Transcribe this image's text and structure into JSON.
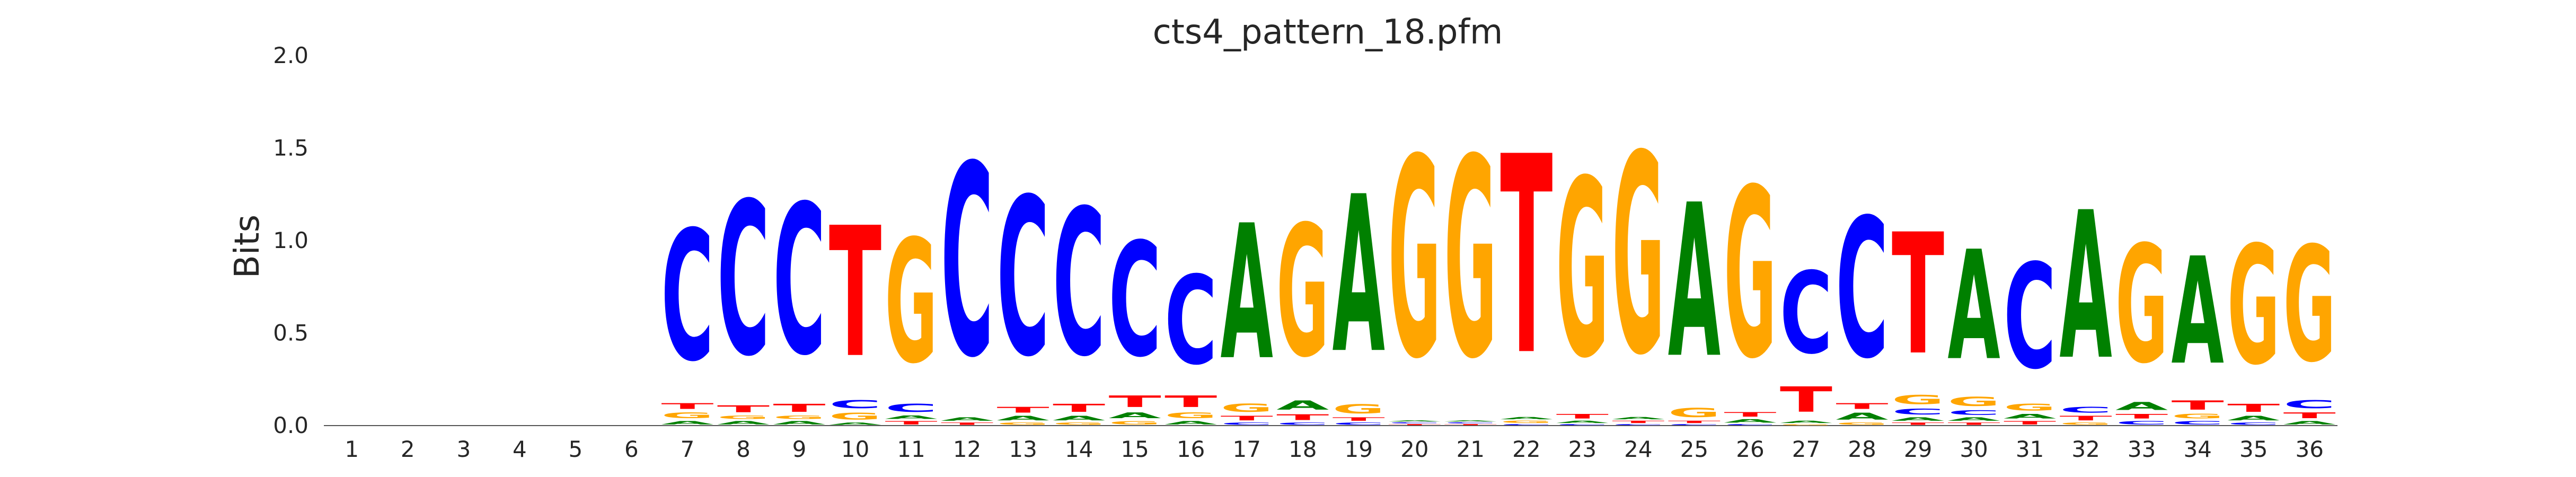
{
  "chart_data": {
    "type": "sequence-logo",
    "title": "cts4_pattern_18.pfm",
    "ylabel": "Bits",
    "xlabel": "",
    "ylim": [
      0,
      2.0
    ],
    "yticks": [
      "0.0",
      "0.5",
      "1.0",
      "1.5",
      "2.0"
    ],
    "positions": [
      "1",
      "2",
      "3",
      "4",
      "5",
      "6",
      "7",
      "8",
      "9",
      "10",
      "11",
      "12",
      "13",
      "14",
      "15",
      "16",
      "17",
      "18",
      "19",
      "20",
      "21",
      "22",
      "23",
      "24",
      "25",
      "26",
      "27",
      "28",
      "29",
      "30",
      "31",
      "32",
      "33",
      "34",
      "35",
      "36"
    ],
    "colors": {
      "A": "#008000",
      "C": "#0000ff",
      "G": "#ffa500",
      "T": "#ff0000"
    },
    "grid": false,
    "stacks": [
      [],
      [],
      [],
      [],
      [],
      [],
      [
        {
          "b": "A",
          "h": 0.03
        },
        {
          "b": "G",
          "h": 0.05
        },
        {
          "b": "T",
          "h": 0.05
        },
        {
          "b": "C",
          "h": 1.13
        }
      ],
      [
        {
          "b": "A",
          "h": 0.03
        },
        {
          "b": "G",
          "h": 0.03
        },
        {
          "b": "T",
          "h": 0.06
        },
        {
          "b": "C",
          "h": 1.33
        }
      ],
      [
        {
          "b": "A",
          "h": 0.03
        },
        {
          "b": "G",
          "h": 0.03
        },
        {
          "b": "T",
          "h": 0.07
        },
        {
          "b": "C",
          "h": 1.3
        }
      ],
      [
        {
          "b": "A",
          "h": 0.02
        },
        {
          "b": "G",
          "h": 0.06
        },
        {
          "b": "C",
          "h": 0.07
        },
        {
          "b": "T",
          "h": 1.13
        }
      ],
      [
        {
          "b": "T",
          "h": 0.03
        },
        {
          "b": "A",
          "h": 0.03
        },
        {
          "b": "C",
          "h": 0.07
        },
        {
          "b": "G",
          "h": 1.07
        }
      ],
      [
        {
          "b": "T",
          "h": 0.02
        },
        {
          "b": "A",
          "h": 0.03
        },
        {
          "b": "C",
          "h": 1.66
        }
      ],
      [
        {
          "b": "G",
          "h": 0.02
        },
        {
          "b": "A",
          "h": 0.04
        },
        {
          "b": "T",
          "h": 0.05
        },
        {
          "b": "C",
          "h": 1.37
        }
      ],
      [
        {
          "b": "G",
          "h": 0.02
        },
        {
          "b": "A",
          "h": 0.04
        },
        {
          "b": "T",
          "h": 0.07
        },
        {
          "b": "C",
          "h": 1.27
        }
      ],
      [
        {
          "b": "G",
          "h": 0.03
        },
        {
          "b": "A",
          "h": 0.05
        },
        {
          "b": "T",
          "h": 0.1
        },
        {
          "b": "C",
          "h": 0.99
        }
      ],
      [
        {
          "b": "A",
          "h": 0.03
        },
        {
          "b": "G",
          "h": 0.05
        },
        {
          "b": "T",
          "h": 0.1
        },
        {
          "b": "C",
          "h": 0.77
        }
      ],
      [
        {
          "b": "C",
          "h": 0.02
        },
        {
          "b": "T",
          "h": 0.04
        },
        {
          "b": "G",
          "h": 0.07
        },
        {
          "b": "A",
          "h": 1.17
        }
      ],
      [
        {
          "b": "C",
          "h": 0.02
        },
        {
          "b": "T",
          "h": 0.05
        },
        {
          "b": "A",
          "h": 0.08
        },
        {
          "b": "G",
          "h": 1.14
        }
      ],
      [
        {
          "b": "C",
          "h": 0.02
        },
        {
          "b": "T",
          "h": 0.03
        },
        {
          "b": "G",
          "h": 0.08
        },
        {
          "b": "A",
          "h": 1.36
        }
      ],
      [
        {
          "b": "T",
          "h": 0.01
        },
        {
          "b": "C",
          "h": 0.01
        },
        {
          "b": "A",
          "h": 0.01
        },
        {
          "b": "G",
          "h": 1.73
        }
      ],
      [
        {
          "b": "T",
          "h": 0.01
        },
        {
          "b": "C",
          "h": 0.01
        },
        {
          "b": "A",
          "h": 0.01
        },
        {
          "b": "G",
          "h": 1.73
        }
      ],
      [
        {
          "b": "C",
          "h": 0.01
        },
        {
          "b": "G",
          "h": 0.02
        },
        {
          "b": "A",
          "h": 0.02
        },
        {
          "b": "T",
          "h": 1.72
        }
      ],
      [
        {
          "b": "C",
          "h": 0.01
        },
        {
          "b": "A",
          "h": 0.02
        },
        {
          "b": "T",
          "h": 0.04
        },
        {
          "b": "G",
          "h": 1.54
        }
      ],
      [
        {
          "b": "C",
          "h": 0.01
        },
        {
          "b": "T",
          "h": 0.02
        },
        {
          "b": "A",
          "h": 0.02
        },
        {
          "b": "G",
          "h": 1.73
        }
      ],
      [
        {
          "b": "C",
          "h": 0.01
        },
        {
          "b": "T",
          "h": 0.02
        },
        {
          "b": "G",
          "h": 0.08
        },
        {
          "b": "A",
          "h": 1.33
        }
      ],
      [
        {
          "b": "C",
          "h": 0.01
        },
        {
          "b": "A",
          "h": 0.03
        },
        {
          "b": "T",
          "h": 0.04
        },
        {
          "b": "G",
          "h": 1.47
        }
      ],
      [
        {
          "b": "G",
          "h": 0.01
        },
        {
          "b": "A",
          "h": 0.02
        },
        {
          "b": "T",
          "h": 0.22
        },
        {
          "b": "C",
          "h": 0.71
        }
      ],
      [
        {
          "b": "G",
          "h": 0.02
        },
        {
          "b": "A",
          "h": 0.06
        },
        {
          "b": "T",
          "h": 0.05
        },
        {
          "b": "C",
          "h": 1.21
        }
      ],
      [
        {
          "b": "T",
          "h": 0.02
        },
        {
          "b": "A",
          "h": 0.03
        },
        {
          "b": "C",
          "h": 0.05
        },
        {
          "b": "G",
          "h": 0.08
        },
        {
          "b": "T",
          "h": 1.05
        }
      ],
      [
        {
          "b": "T",
          "h": 0.02
        },
        {
          "b": "A",
          "h": 0.03
        },
        {
          "b": "C",
          "h": 0.04
        },
        {
          "b": "G",
          "h": 0.08
        },
        {
          "b": "A",
          "h": 0.95
        }
      ],
      [
        {
          "b": "T",
          "h": 0.03
        },
        {
          "b": "A",
          "h": 0.04
        },
        {
          "b": "G",
          "h": 0.06
        },
        {
          "b": "C",
          "h": 0.91
        }
      ],
      [
        {
          "b": "G",
          "h": 0.02
        },
        {
          "b": "T",
          "h": 0.04
        },
        {
          "b": "C",
          "h": 0.05
        },
        {
          "b": "A",
          "h": 1.28
        }
      ],
      [
        {
          "b": "C",
          "h": 0.03
        },
        {
          "b": "T",
          "h": 0.04
        },
        {
          "b": "A",
          "h": 0.07
        },
        {
          "b": "G",
          "h": 1.02
        }
      ],
      [
        {
          "b": "C",
          "h": 0.03
        },
        {
          "b": "G",
          "h": 0.04
        },
        {
          "b": "T",
          "h": 0.08
        },
        {
          "b": "A",
          "h": 0.93
        }
      ],
      [
        {
          "b": "C",
          "h": 0.02
        },
        {
          "b": "A",
          "h": 0.04
        },
        {
          "b": "T",
          "h": 0.07
        },
        {
          "b": "G",
          "h": 1.03
        }
      ],
      [
        {
          "b": "A",
          "h": 0.03
        },
        {
          "b": "T",
          "h": 0.05
        },
        {
          "b": "C",
          "h": 0.07
        },
        {
          "b": "G",
          "h": 1.0
        }
      ]
    ]
  }
}
